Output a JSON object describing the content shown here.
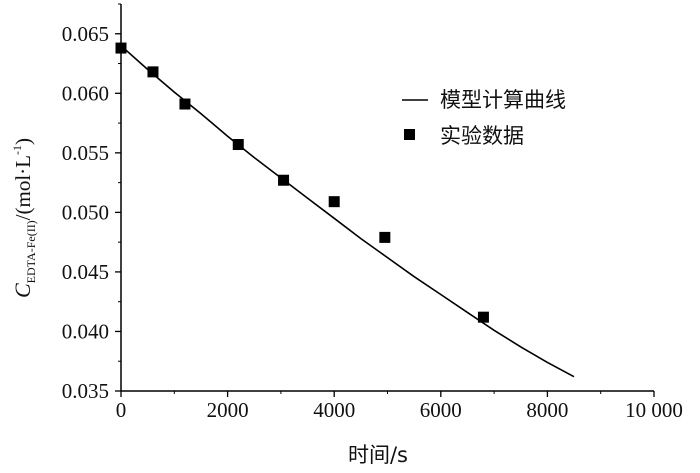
{
  "chart_data": {
    "type": "scatter",
    "x_axis": {
      "label": "时间/s",
      "ticks": [
        "0",
        "2000",
        "4000",
        "6000",
        "8000",
        "10 000"
      ],
      "tick_values": [
        0,
        2000,
        4000,
        6000,
        8000,
        10000
      ],
      "range": [
        0,
        10000
      ]
    },
    "y_axis": {
      "label_main": "C",
      "label_sub": "EDTA-Fe(II)",
      "label_unit_pre": "/(mol·L",
      "label_unit_sup": "-1",
      "label_unit_post": ")",
      "ticks": [
        "0.035",
        "0.040",
        "0.045",
        "0.050",
        "0.055",
        "0.060",
        "0.065"
      ],
      "tick_values": [
        0.035,
        0.04,
        0.045,
        0.05,
        0.055,
        0.06,
        0.065
      ],
      "range": [
        0.035,
        0.0675
      ]
    },
    "series": [
      {
        "name": "模型计算曲线",
        "kind": "line",
        "color": "#000000",
        "x": [
          0,
          500,
          1000,
          1500,
          2000,
          2500,
          3000,
          3500,
          4000,
          4500,
          5000,
          5500,
          6000,
          6500,
          7000,
          7500,
          8000,
          8500
        ],
        "y": [
          0.064,
          0.062,
          0.0601,
          0.0583,
          0.0564,
          0.0546,
          0.0529,
          0.0512,
          0.0495,
          0.0478,
          0.0462,
          0.0446,
          0.0431,
          0.0416,
          0.0401,
          0.0387,
          0.0374,
          0.0362
        ]
      },
      {
        "name": "实验数据",
        "kind": "scatter",
        "color": "#000000",
        "x": [
          0,
          600,
          1200,
          2200,
          3050,
          4000,
          4950,
          6800
        ],
        "y": [
          0.0638,
          0.0618,
          0.0591,
          0.0557,
          0.0527,
          0.0509,
          0.0479,
          0.0412
        ]
      }
    ],
    "legend": {
      "position": "top-right",
      "entries": [
        "模型计算曲线",
        "实验数据"
      ]
    }
  }
}
